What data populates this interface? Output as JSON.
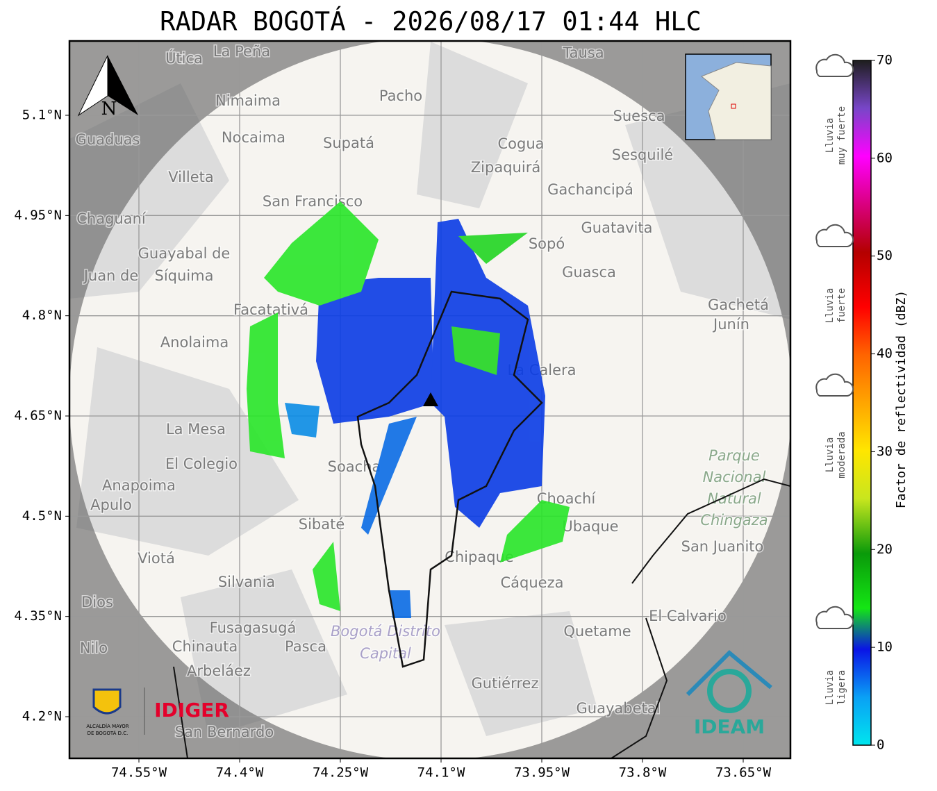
{
  "header": {
    "title": "RADAR BOGOTÁ - 2026/08/17 01:44 HLC"
  },
  "map": {
    "lat_ticks": [
      {
        "value": 5.1,
        "label": "5.1°N"
      },
      {
        "value": 4.95,
        "label": "4.95°N"
      },
      {
        "value": 4.8,
        "label": "4.8°N"
      },
      {
        "value": 4.65,
        "label": "4.65°N"
      },
      {
        "value": 4.5,
        "label": "4.5°N"
      },
      {
        "value": 4.35,
        "label": "4.35°N"
      },
      {
        "value": 4.2,
        "label": "4.2°N"
      }
    ],
    "lon_ticks": [
      {
        "value": -74.55,
        "label": "74.55°W"
      },
      {
        "value": -74.4,
        "label": "74.4°W"
      },
      {
        "value": -74.25,
        "label": "74.25°W"
      },
      {
        "value": -74.1,
        "label": "74.1°W"
      },
      {
        "value": -73.95,
        "label": "73.95°W"
      },
      {
        "value": -73.8,
        "label": "73.8°W"
      },
      {
        "value": -73.65,
        "label": "73.65°W"
      }
    ],
    "north": "N",
    "places": [
      "La Peña",
      "Útica",
      "Tausa",
      "Pacho",
      "Nimaima",
      "Suesca",
      "Guaduas",
      "Nocaima",
      "Supatá",
      "Cogua",
      "Sesquilé",
      "Zipaquirá",
      "Villeta",
      "Gachancipá",
      "San Francisco",
      "Chaguaní",
      "Guatavita",
      "Sopó",
      "Guayabal de",
      "Síquima",
      "Guasca",
      "Juan de",
      "Facatativá",
      "Gachetá",
      "Junín",
      "Anolaima",
      "La Calera",
      "La Mesa",
      "El Colegio",
      "Soacha",
      "Anapoima",
      "Apulo",
      "Choachí",
      "Sibaté",
      "Ubaque",
      "San Juanito",
      "Viotá",
      "Chipaque",
      "Silvania",
      "Cáqueza",
      "Dios",
      "El Calvario",
      "Fusagasugá",
      "Quetame",
      "Nilo",
      "Chinauta",
      "Pasca",
      "Arbeláez",
      "Gutiérrez",
      "Guayabetal",
      "San Bernardo"
    ],
    "park": [
      "Parque",
      "Nacional",
      "Natural",
      "Chingaza"
    ],
    "district": [
      "Bogotá Distrito",
      "Capital"
    ]
  },
  "logos": {
    "alcaldia": [
      "ALCALDÍA MAYOR",
      "DE BOGOTÁ D.C."
    ],
    "idiger": "IDIGER",
    "ideam": "IDEAM"
  },
  "colorbar": {
    "label": "Factor de reflectividad (dBZ)",
    "ticks": [
      0,
      10,
      20,
      30,
      40,
      50,
      60,
      70
    ],
    "rain": [
      [
        "Lluvia",
        "muy fuerte"
      ],
      [
        "Lluvia",
        "fuerte"
      ],
      [
        "Lluvia",
        "moderada"
      ],
      [
        "Lluvia",
        "ligera"
      ]
    ]
  }
}
